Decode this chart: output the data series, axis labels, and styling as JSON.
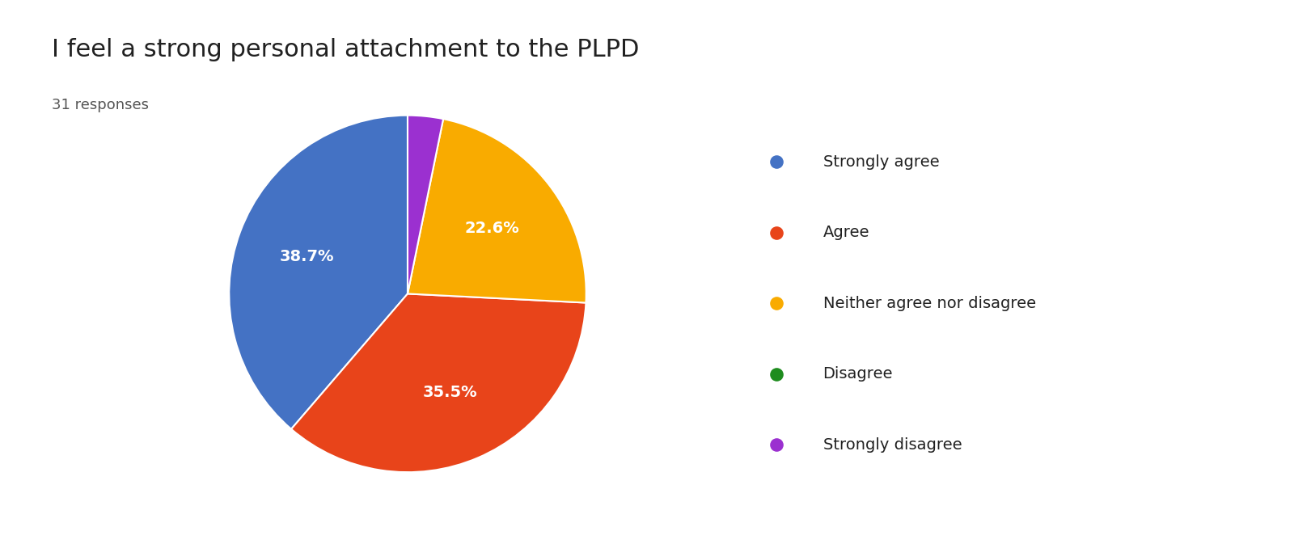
{
  "title": "I feel a strong personal attachment to the PLPD",
  "subtitle": "31 responses",
  "labels": [
    "Strongly agree",
    "Agree",
    "Neither agree nor disagree",
    "Disagree",
    "Strongly disagree"
  ],
  "values": [
    38.7,
    35.5,
    22.6,
    0.0,
    3.2
  ],
  "colors": [
    "#4472C4",
    "#E8441A",
    "#F9AB00",
    "#1E8C1E",
    "#9B30D0"
  ],
  "pct_labels": [
    "38.7%",
    "35.5%",
    "22.6%",
    "",
    ""
  ],
  "title_fontsize": 22,
  "subtitle_fontsize": 13,
  "legend_fontsize": 14,
  "label_fontsize": 14,
  "background_color": "#ffffff",
  "startangle": 90
}
